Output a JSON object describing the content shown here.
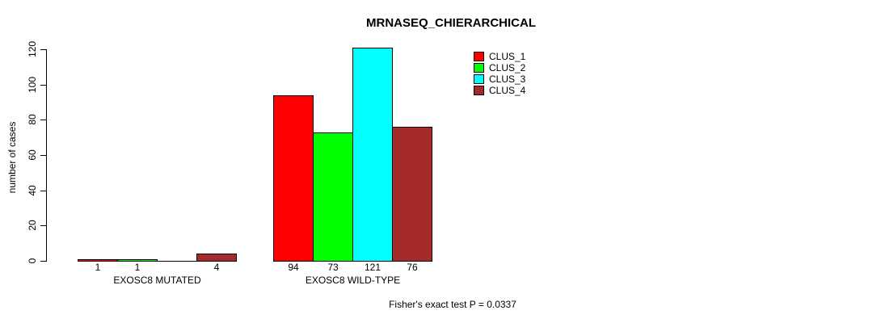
{
  "chart_data": {
    "type": "bar",
    "title": "MRNASEQ_CHIERARCHICAL",
    "ylabel": "number of cases",
    "xlabel": "",
    "ylim": [
      0,
      120
    ],
    "yticks": [
      0,
      20,
      40,
      60,
      80,
      100,
      120
    ],
    "grid": false,
    "legend_position": "top-right",
    "categories": [
      "EXOSC8 MUTATED",
      "EXOSC8 WILD-TYPE"
    ],
    "series": [
      {
        "name": "CLUS_1",
        "color": "#ff0000",
        "values": [
          1,
          94
        ]
      },
      {
        "name": "CLUS_2",
        "color": "#00ff00",
        "values": [
          1,
          73
        ]
      },
      {
        "name": "CLUS_3",
        "color": "#00ffff",
        "values": [
          0,
          121
        ]
      },
      {
        "name": "CLUS_4",
        "color": "#a52a2a",
        "values": [
          4,
          76
        ]
      }
    ],
    "bar_value_labels": [
      [
        "1",
        "1",
        "",
        "4"
      ],
      [
        "94",
        "73",
        "121",
        "76"
      ]
    ],
    "annotation": "Fisher's exact test P = 0.0337"
  }
}
